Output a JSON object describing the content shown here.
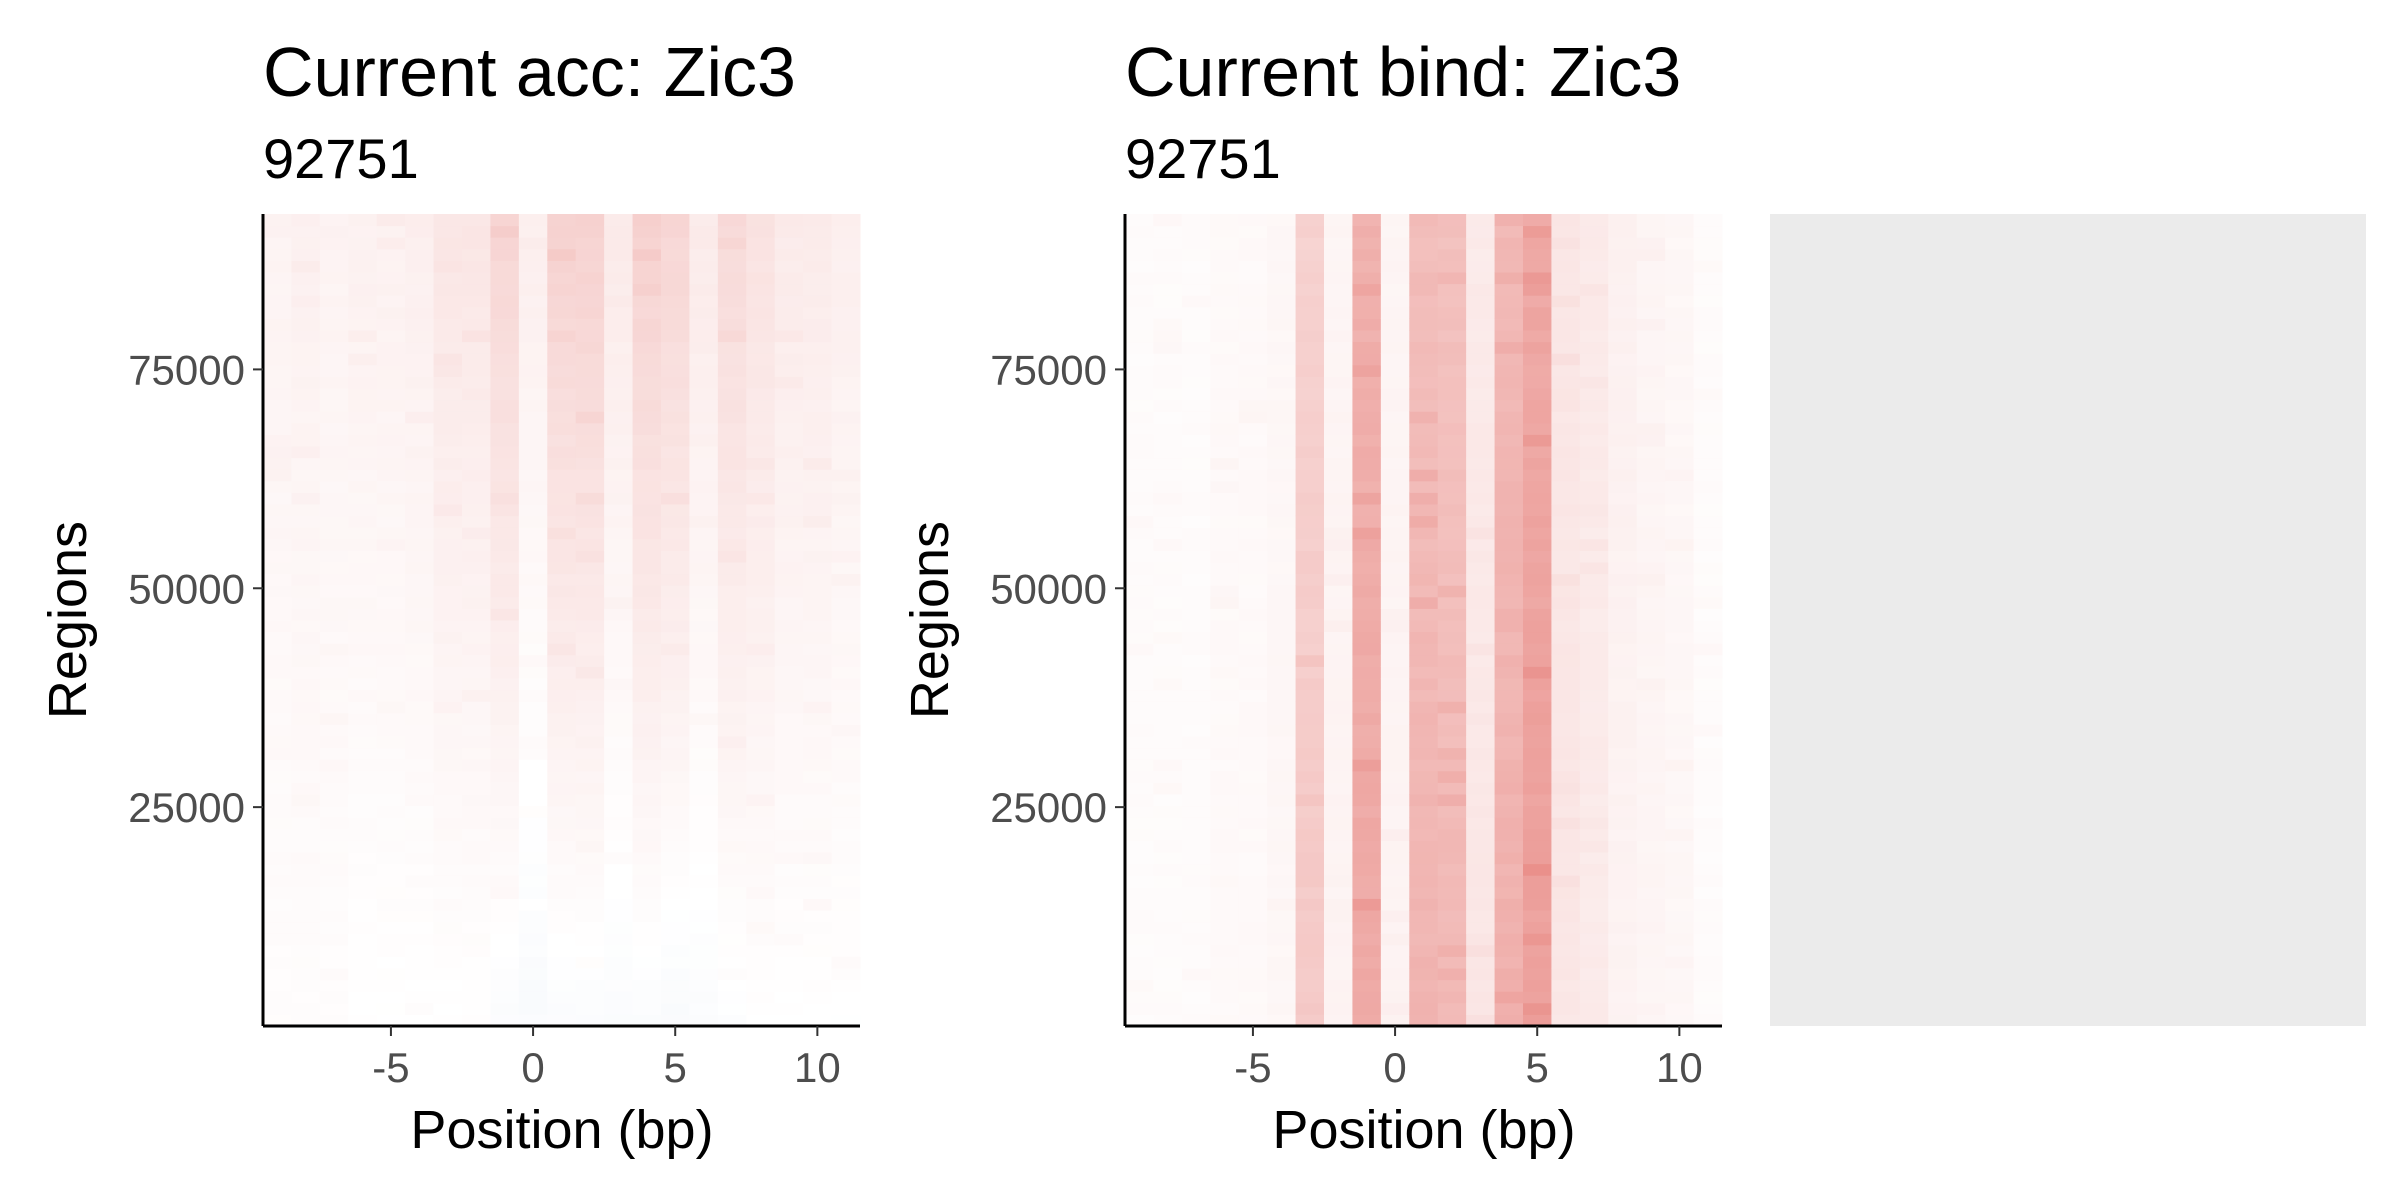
{
  "chart_data": [
    {
      "type": "heatmap",
      "title": "Current acc: Zic3",
      "subtitle": "92751",
      "xlabel": "Position (bp)",
      "ylabel": "Regions",
      "xlim": [
        -9.5,
        11.5
      ],
      "ylim": [
        0,
        92751
      ],
      "x_ticks": [
        -5,
        0,
        5,
        10
      ],
      "y_ticks": [
        25000,
        50000,
        75000
      ],
      "x_tick_labels": [
        "-5",
        "0",
        "5",
        "10"
      ],
      "y_tick_labels": [
        "25000",
        "50000",
        "75000"
      ],
      "x": [
        -9,
        -8,
        -7,
        -6,
        -5,
        -4,
        -3,
        -2,
        -1,
        0,
        1,
        2,
        3,
        4,
        5,
        6,
        7,
        8,
        9,
        10,
        11
      ],
      "column_intensity_top": [
        0.06,
        0.07,
        0.06,
        0.07,
        0.07,
        0.08,
        0.12,
        0.12,
        0.2,
        0.08,
        0.22,
        0.22,
        0.1,
        0.22,
        0.2,
        0.1,
        0.18,
        0.14,
        0.1,
        0.1,
        0.08
      ],
      "column_intensity_bottom": [
        0.01,
        0.01,
        0.01,
        0.0,
        0.0,
        0.0,
        0.0,
        0.0,
        -0.02,
        -0.03,
        -0.02,
        -0.02,
        -0.02,
        -0.02,
        -0.03,
        -0.02,
        -0.01,
        0.0,
        0.0,
        0.0,
        0.0
      ],
      "color_low": "#3b6fb6",
      "color_mid": "#ffffff",
      "color_high": "#d73027",
      "grid": false
    },
    {
      "type": "heatmap",
      "title": "Current bind: Zic3",
      "subtitle": "92751",
      "xlabel": "Position (bp)",
      "ylabel": "Regions",
      "xlim": [
        -9.5,
        11.5
      ],
      "ylim": [
        0,
        92751
      ],
      "x_ticks": [
        -5,
        0,
        5,
        10
      ],
      "y_ticks": [
        25000,
        50000,
        75000
      ],
      "x_tick_labels": [
        "-5",
        "0",
        "5",
        "10"
      ],
      "y_tick_labels": [
        "25000",
        "50000",
        "75000"
      ],
      "x": [
        -9,
        -8,
        -7,
        -6,
        -5,
        -4,
        -3,
        -2,
        -1,
        0,
        1,
        2,
        3,
        4,
        5,
        6,
        7,
        8,
        9,
        10,
        11
      ],
      "column_intensity_top": [
        0.02,
        0.02,
        0.02,
        0.03,
        0.03,
        0.04,
        0.22,
        0.05,
        0.38,
        0.05,
        0.32,
        0.3,
        0.1,
        0.34,
        0.42,
        0.12,
        0.1,
        0.07,
        0.05,
        0.04,
        0.02
      ],
      "column_intensity_bottom": [
        0.02,
        0.02,
        0.02,
        0.03,
        0.03,
        0.04,
        0.26,
        0.06,
        0.42,
        0.06,
        0.36,
        0.34,
        0.12,
        0.38,
        0.46,
        0.12,
        0.1,
        0.06,
        0.05,
        0.04,
        0.02
      ],
      "color_low": "#3b6fb6",
      "color_mid": "#ffffff",
      "color_high": "#d73027",
      "grid": false
    }
  ],
  "empty_panel": {
    "fill": "#ebebeb"
  }
}
